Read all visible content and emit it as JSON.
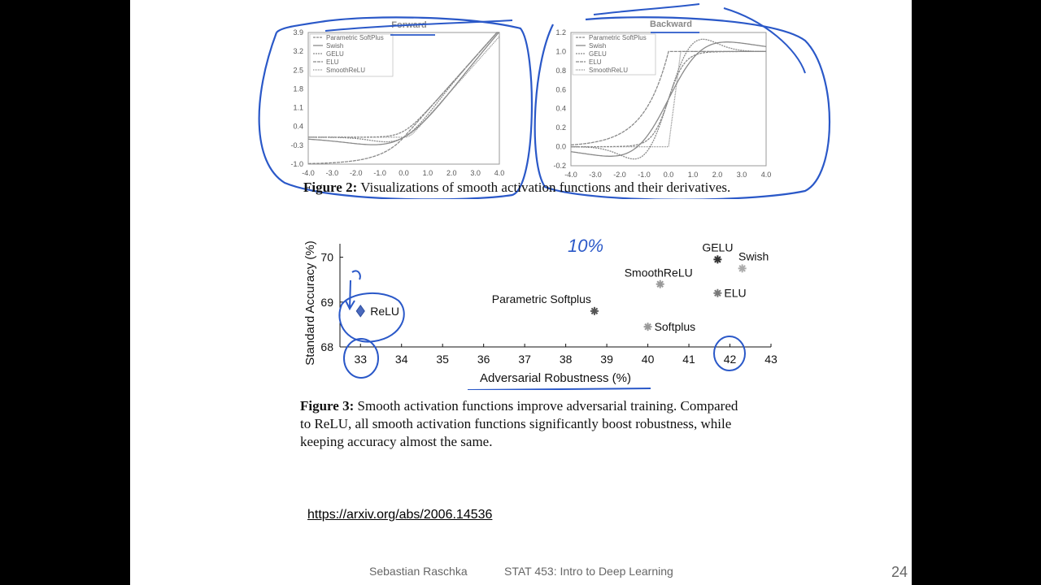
{
  "fig2": {
    "forward_title": "Forward",
    "backward_title": "Backward",
    "legend": [
      "Parametric SoftPlus",
      "Swish",
      "GELU",
      "ELU",
      "SmoothReLU"
    ],
    "forward_yticks": [
      "3.9",
      "3.2",
      "2.5",
      "1.8",
      "1.1",
      "0.4",
      "-0.3",
      "-1.0"
    ],
    "backward_yticks": [
      "1.2",
      "1.0",
      "0.8",
      "0.6",
      "0.4",
      "0.2",
      "0.0",
      "-0.2"
    ],
    "xticks": [
      "-4.0",
      "-3.0",
      "-2.0",
      "-1.0",
      "0.0",
      "1.0",
      "2.0",
      "3.0",
      "4.0"
    ],
    "caption_label": "Figure 2:",
    "caption_text": " Visualizations of smooth activation functions and their derivatives."
  },
  "chart_data": {
    "type": "scatter",
    "ylabel": "Standard Accuracy (%)",
    "xlabel": "Adversarial Robustness (%)",
    "xlim": [
      32.5,
      43
    ],
    "ylim": [
      68,
      70.3
    ],
    "xticks": [
      "33",
      "34",
      "35",
      "36",
      "37",
      "38",
      "39",
      "40",
      "41",
      "42",
      "43"
    ],
    "yticks": [
      "70",
      "69",
      "68"
    ],
    "points": [
      {
        "label": "ReLU",
        "x": 33.0,
        "y": 68.8,
        "marker": "diamond",
        "color": "#4a69bd"
      },
      {
        "label": "Parametric Softplus",
        "x": 38.7,
        "y": 68.8,
        "marker": "star",
        "color": "#555555"
      },
      {
        "label": "Softplus",
        "x": 40.0,
        "y": 68.45,
        "marker": "star",
        "color": "#999999"
      },
      {
        "label": "SmoothReLU",
        "x": 40.3,
        "y": 69.4,
        "marker": "star",
        "color": "#999999"
      },
      {
        "label": "GELU",
        "x": 41.7,
        "y": 69.95,
        "marker": "star",
        "color": "#333333"
      },
      {
        "label": "ELU",
        "x": 41.7,
        "y": 69.2,
        "marker": "star",
        "color": "#777777"
      },
      {
        "label": "Swish",
        "x": 42.3,
        "y": 69.75,
        "marker": "star",
        "color": "#aaaaaa"
      }
    ]
  },
  "fig3": {
    "caption_label": "Figure 3:",
    "caption_line1": " Smooth activation functions improve adversarial training. Compared",
    "caption_line2": "to ReLU, all smooth activation functions significantly boost robustness, while",
    "caption_line3": "keeping accuracy almost the same."
  },
  "annotation": {
    "handwritten": "10%"
  },
  "link": "https://arxiv.org/abs/2006.14536",
  "footer": {
    "author": "Sebastian Raschka",
    "course": "STAT 453: Intro to Deep Learning",
    "page": "24"
  },
  "colors": {
    "ink": "#2a58c8",
    "curve": "#8a8a8a"
  }
}
